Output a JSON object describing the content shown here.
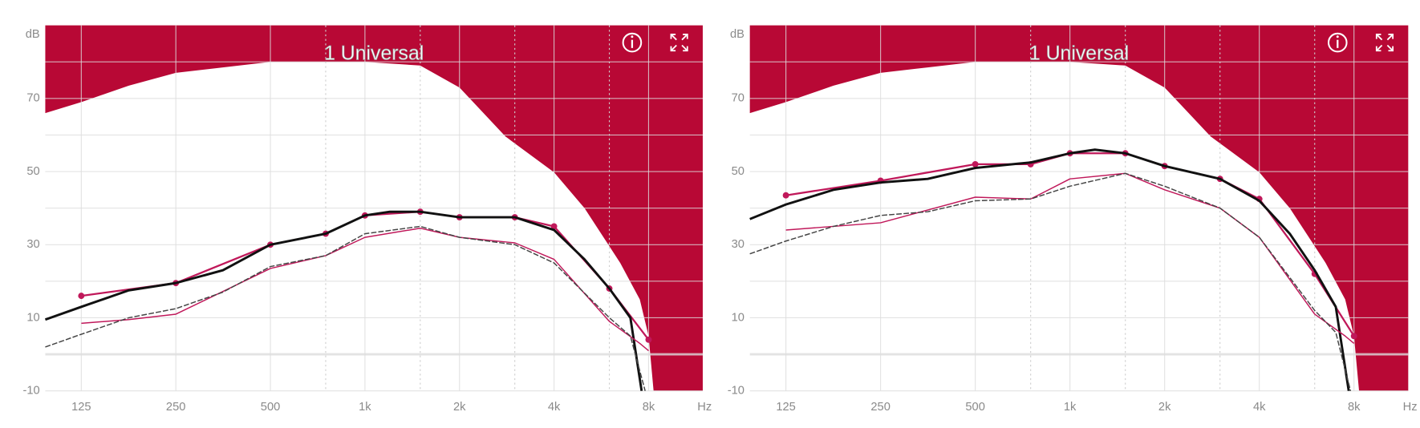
{
  "chart_data": [
    {
      "type": "line",
      "title": "1 Universal",
      "y_unit": "dB",
      "x_unit": "Hz",
      "xscale": "log",
      "xlim": [
        96,
        11900
      ],
      "ylim": [
        -10,
        90
      ],
      "xticks": [
        125,
        250,
        500,
        {
          "value": 1000,
          "label": "1k"
        },
        {
          "value": 2000,
          "label": "2k"
        },
        {
          "value": 4000,
          "label": "4k"
        },
        {
          "value": 8000,
          "label": "8k"
        }
      ],
      "xminor": [
        750,
        1500,
        3000,
        6000
      ],
      "yticks": [
        -10,
        10,
        30,
        50,
        70
      ],
      "yminor": [
        0,
        20,
        40,
        60,
        80
      ],
      "baseline": 0,
      "grid": true,
      "limit": {
        "color": "#b80835",
        "x": [
          96,
          125,
          177,
          250,
          353,
          500,
          750,
          1000,
          1500,
          2000,
          2800,
          4000,
          5000,
          6500,
          7500,
          8000,
          8300
        ],
        "values": [
          66,
          69,
          73.5,
          77,
          78.5,
          80,
          80,
          80,
          79,
          73,
          59.6,
          49.8,
          40,
          25,
          15,
          5,
          -10
        ]
      },
      "series": [
        {
          "color": "#c0185a",
          "width": 2,
          "markers": true,
          "x": [
            125,
            250,
            500,
            750,
            1000,
            1500,
            2000,
            3000,
            4000,
            6000,
            8000
          ],
          "values": [
            16,
            19.5,
            30,
            33,
            38,
            39,
            37.5,
            37.5,
            35,
            18,
            4
          ]
        },
        {
          "color": "#111111",
          "width": 2.6,
          "x": [
            96,
            125,
            177,
            250,
            353,
            500,
            750,
            1000,
            1200,
            1500,
            2000,
            3000,
            4000,
            5000,
            6000,
            7000,
            7600
          ],
          "values": [
            9.5,
            13,
            17.5,
            19.5,
            23,
            30,
            33,
            38,
            39,
            39,
            37.5,
            37.5,
            34,
            26,
            18,
            10,
            -10
          ]
        },
        {
          "color": "#c0185a",
          "width": 1.3,
          "x": [
            125,
            177,
            250,
            500,
            750,
            1000,
            1500,
            2000,
            3000,
            4000,
            6000,
            7500,
            8000
          ],
          "values": [
            8.5,
            9.5,
            11,
            23.5,
            27,
            32,
            34.5,
            32,
            30.5,
            26,
            9,
            3,
            1
          ]
        },
        {
          "color": "#444444",
          "width": 1.3,
          "dash": true,
          "x": [
            96,
            125,
            177,
            250,
            353,
            500,
            750,
            1000,
            1500,
            2000,
            3000,
            4000,
            6000,
            7000,
            7800
          ],
          "values": [
            2,
            5.5,
            10,
            12.5,
            17,
            24,
            27,
            33,
            35,
            32,
            30,
            25,
            10,
            5,
            -10
          ]
        }
      ]
    },
    {
      "type": "line",
      "title": "1 Universal",
      "y_unit": "dB",
      "x_unit": "Hz",
      "xscale": "log",
      "xlim": [
        96,
        11900
      ],
      "ylim": [
        -10,
        90
      ],
      "xticks": [
        125,
        250,
        500,
        {
          "value": 1000,
          "label": "1k"
        },
        {
          "value": 2000,
          "label": "2k"
        },
        {
          "value": 4000,
          "label": "4k"
        },
        {
          "value": 8000,
          "label": "8k"
        }
      ],
      "xminor": [
        750,
        1500,
        3000,
        6000
      ],
      "yticks": [
        -10,
        10,
        30,
        50,
        70
      ],
      "yminor": [
        0,
        20,
        40,
        60,
        80
      ],
      "baseline": 0,
      "grid": true,
      "limit": {
        "color": "#b80835",
        "x": [
          96,
          125,
          177,
          250,
          353,
          500,
          750,
          1000,
          1500,
          2000,
          2800,
          4000,
          5000,
          6500,
          7500,
          8000,
          8300
        ],
        "values": [
          66,
          69,
          73.5,
          77,
          78.5,
          80,
          80,
          80,
          79,
          73,
          59.6,
          49.8,
          40,
          25,
          15,
          5,
          -10
        ]
      },
      "series": [
        {
          "color": "#c0185a",
          "width": 2,
          "markers": true,
          "x": [
            125,
            250,
            500,
            750,
            1000,
            1500,
            2000,
            3000,
            4000,
            6000,
            8000
          ],
          "values": [
            43.5,
            47.5,
            52,
            52,
            55,
            55,
            51.5,
            48,
            42.5,
            22,
            5
          ]
        },
        {
          "color": "#111111",
          "width": 2.6,
          "x": [
            96,
            125,
            177,
            250,
            353,
            500,
            750,
            1000,
            1200,
            1500,
            2000,
            3000,
            4000,
            5000,
            6000,
            7000,
            7700
          ],
          "values": [
            37,
            41,
            45,
            47,
            48,
            51,
            52.5,
            55,
            56,
            55,
            51.5,
            48,
            42,
            33,
            23,
            13,
            -10
          ]
        },
        {
          "color": "#c0185a",
          "width": 1.3,
          "x": [
            125,
            250,
            500,
            750,
            1000,
            1500,
            2000,
            3000,
            4000,
            6000,
            7500,
            8000
          ],
          "values": [
            34,
            36,
            43,
            42.5,
            48,
            49.5,
            45,
            40,
            32,
            11,
            5,
            3
          ]
        },
        {
          "color": "#444444",
          "width": 1.3,
          "dash": true,
          "x": [
            96,
            125,
            177,
            250,
            353,
            500,
            750,
            1000,
            1500,
            2000,
            3000,
            4000,
            6000,
            7000,
            7800
          ],
          "values": [
            27.5,
            31,
            35,
            38,
            39,
            42,
            42.5,
            46,
            49.5,
            46,
            40,
            32,
            12,
            6,
            -10
          ]
        }
      ]
    }
  ]
}
